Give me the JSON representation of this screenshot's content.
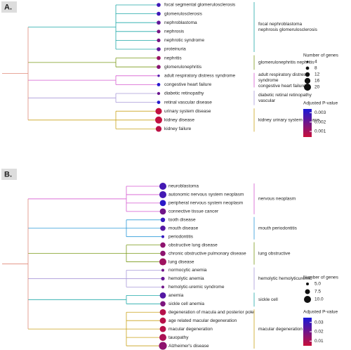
{
  "panels": [
    {
      "label": "A.",
      "clusters": [
        {
          "label": [
            "focal nephroblastoma",
            "nephrosis glomerulosclerosis"
          ],
          "color": "#1fa9a9",
          "terms": [
            {
              "name": "focal segmental glomerulosclerosis",
              "size": 10,
              "pvalue": 0.0028
            },
            {
              "name": "glomerulosclerosis",
              "size": 10,
              "pvalue": 0.0028
            },
            {
              "name": "nephroblastoma",
              "size": 10,
              "pvalue": 0.0022
            },
            {
              "name": "nephrosis",
              "size": 9,
              "pvalue": 0.0018
            },
            {
              "name": "nephrotic syndrome",
              "size": 9,
              "pvalue": 0.0018
            },
            {
              "name": "proteinuria",
              "size": 10,
              "pvalue": 0.0022
            }
          ]
        },
        {
          "label": [
            "glomerulonephritis nephritis"
          ],
          "color": "#7a9a1a",
          "terms": [
            {
              "name": "nephritis",
              "size": 10,
              "pvalue": 0.0012
            },
            {
              "name": "glomerulonephritis",
              "size": 10,
              "pvalue": 0.0015
            }
          ]
        },
        {
          "label": [
            "adult respiratory distress",
            "syndrome",
            "congestive heart failure"
          ],
          "color": "#d65ad0",
          "terms": [
            {
              "name": "adult respiratory distress syndrome",
              "size": 5,
              "pvalue": 0.0025
            },
            {
              "name": "congestive heart failure",
              "size": 8,
              "pvalue": 0.0032
            }
          ]
        },
        {
          "label": [
            "diabetic retinal retinopathy",
            "vascular"
          ],
          "color": "#a99ad8",
          "terms": [
            {
              "name": "diabetic retinopathy",
              "size": 7,
              "pvalue": 0.002
            },
            {
              "name": "retinal vascular disease",
              "size": 8,
              "pvalue": 0.0032
            }
          ]
        },
        {
          "label": [
            "kidney urinary system disease"
          ],
          "color": "#c9a21a",
          "terms": [
            {
              "name": "urinary system disease",
              "size": 18,
              "pvalue": 0.0005
            },
            {
              "name": "kidney disease",
              "size": 20,
              "pvalue": 0.0005
            },
            {
              "name": "kidney failure",
              "size": 16,
              "pvalue": 0.0006
            }
          ]
        }
      ],
      "legend": {
        "size_title": "Number of genes",
        "size_ticks": [
          4,
          8,
          12,
          16,
          20
        ],
        "color_title": "Adjusted P-value",
        "color_ticks": [
          0.003,
          0.002,
          0.001
        ],
        "color_lim": [
          0.0004,
          0.0034
        ],
        "colors": [
          "#c8103a",
          "#1a1ad8"
        ]
      }
    },
    {
      "label": "B.",
      "clusters": [
        {
          "label": [
            "nervous neoplasm"
          ],
          "color": "#d65ad0",
          "terms": [
            {
              "name": "neuroblastoma",
              "size": 10,
              "pvalue": 0.028
            },
            {
              "name": "autonomic nervous system neoplasm",
              "size": 10,
              "pvalue": 0.028
            },
            {
              "name": "peripheral nervous system neoplasm",
              "size": 9,
              "pvalue": 0.032
            },
            {
              "name": "connective tissue cancer",
              "size": 9,
              "pvalue": 0.02
            }
          ]
        },
        {
          "label": [
            "mouth periodontitis"
          ],
          "color": "#2a9ad8",
          "terms": [
            {
              "name": "tooth disease",
              "size": 7,
              "pvalue": 0.03
            },
            {
              "name": "mouth disease",
              "size": 8,
              "pvalue": 0.025
            },
            {
              "name": "periodontitis",
              "size": 5,
              "pvalue": 0.03
            }
          ]
        },
        {
          "label": [
            "lung obstructive"
          ],
          "color": "#7a9a1a",
          "terms": [
            {
              "name": "obstructive lung disease",
              "size": 8,
              "pvalue": 0.015
            },
            {
              "name": "chronic obstructive pulmonary disease",
              "size": 8,
              "pvalue": 0.015
            },
            {
              "name": "lung disease",
              "size": 10,
              "pvalue": 0.012
            }
          ]
        },
        {
          "label": [
            "hemolytic hemolyticuremic"
          ],
          "color": "#a99ad8",
          "terms": [
            {
              "name": "normocytic anemia",
              "size": 5,
              "pvalue": 0.02
            },
            {
              "name": "hemolytic anemia",
              "size": 6,
              "pvalue": 0.022
            },
            {
              "name": "hemolytic-uremic syndrome",
              "size": 5,
              "pvalue": 0.02
            }
          ]
        },
        {
          "label": [
            "sickle cell"
          ],
          "color": "#1fa9a9",
          "terms": [
            {
              "name": "anemia",
              "size": 9,
              "pvalue": 0.025
            },
            {
              "name": "sickle cell anemia",
              "size": 8,
              "pvalue": 0.018
            }
          ]
        },
        {
          "label": [
            "macular degeneration"
          ],
          "color": "#c9a21a",
          "terms": [
            {
              "name": "degeneration of macula and posterior pole",
              "size": 9,
              "pvalue": 0.008
            },
            {
              "name": "age related macular degeneration",
              "size": 9,
              "pvalue": 0.008
            },
            {
              "name": "macular degeneration",
              "size": 9,
              "pvalue": 0.008
            },
            {
              "name": "tauopathy",
              "size": 10,
              "pvalue": 0.01
            },
            {
              "name": "Alzheimer's disease",
              "size": 11,
              "pvalue": 0.015
            }
          ]
        }
      ],
      "legend": {
        "size_title": "Number of genes",
        "size_ticks": [
          {
            "value": 5,
            "label": "5.0"
          },
          7.5,
          {
            "value": 10,
            "label": "10.0"
          }
        ],
        "color_title": "Adjusted P-value",
        "color_ticks": [
          0.03,
          0.02,
          0.01
        ],
        "color_lim": [
          0.005,
          0.035
        ],
        "colors": [
          "#c8103a",
          "#1a1ad8"
        ]
      }
    }
  ]
}
